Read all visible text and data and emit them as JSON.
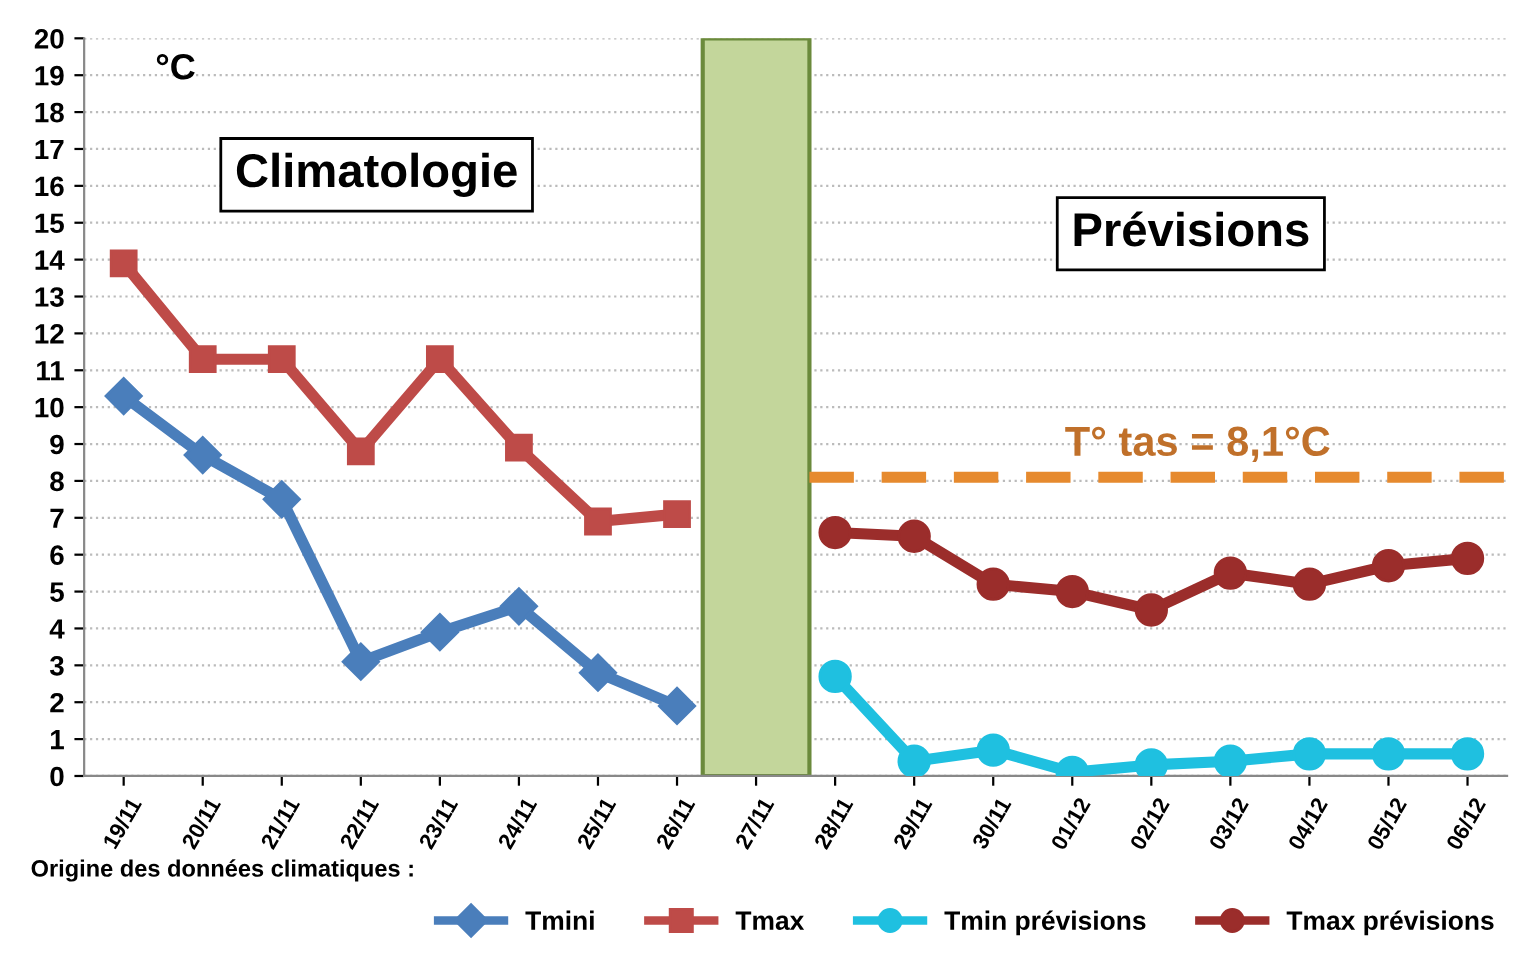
{
  "chart_data": {
    "type": "line",
    "categories": [
      "19/11",
      "20/11",
      "21/11",
      "22/11",
      "23/11",
      "24/11",
      "25/11",
      "26/11",
      "27/11",
      "28/11",
      "29/11",
      "30/11",
      "01/12",
      "02/12",
      "03/12",
      "04/12",
      "05/12",
      "06/12"
    ],
    "series": [
      {
        "name": "Tmini",
        "color": "#4a7ebb",
        "marker": "diamond",
        "values": [
          10.3,
          8.7,
          7.5,
          3.1,
          3.9,
          4.6,
          2.8,
          1.9,
          null,
          null,
          null,
          null,
          null,
          null,
          null,
          null,
          null,
          null
        ]
      },
      {
        "name": "Tmax",
        "color": "#be4b48",
        "marker": "square",
        "values": [
          13.9,
          11.3,
          11.3,
          8.8,
          11.3,
          8.9,
          6.9,
          7.1,
          null,
          null,
          null,
          null,
          null,
          null,
          null,
          null,
          null,
          null
        ]
      },
      {
        "type": "bar",
        "color": "#c3d69b",
        "values": [
          null,
          null,
          null,
          null,
          null,
          null,
          null,
          null,
          20,
          null,
          null,
          null,
          null,
          null,
          null,
          null,
          null,
          null
        ]
      },
      {
        "name": "Tmin prévisions",
        "color": "#1fc0e0",
        "marker": "circle",
        "values": [
          null,
          null,
          null,
          null,
          null,
          null,
          null,
          null,
          null,
          2.7,
          0.4,
          0.7,
          0.1,
          0.3,
          0.4,
          0.6,
          0.6,
          0.6
        ]
      },
      {
        "name": "Tmax prévisions",
        "color": "#9b2d2b",
        "marker": "circle",
        "values": [
          null,
          null,
          null,
          null,
          null,
          null,
          null,
          null,
          null,
          6.6,
          6.5,
          5.2,
          5.0,
          4.5,
          5.5,
          5.2,
          5.7,
          5.9
        ]
      }
    ],
    "ylim": [
      0,
      20
    ],
    "yticks": [
      0,
      1,
      2,
      3,
      4,
      5,
      6,
      7,
      8,
      9,
      10,
      11,
      12,
      13,
      14,
      15,
      16,
      17,
      18,
      19,
      20
    ],
    "grid": "y",
    "legend": "bottom",
    "line_style": "solid",
    "ref_lines": [
      {
        "axis": "y",
        "value": 8.1,
        "label": "T° tas = 8,1°C",
        "color": "#e68a2e",
        "line_style": "dashed"
      }
    ],
    "annotations": [
      "°C",
      "Climatologie",
      "Prévisions",
      "Origine des données climatiques :"
    ]
  }
}
